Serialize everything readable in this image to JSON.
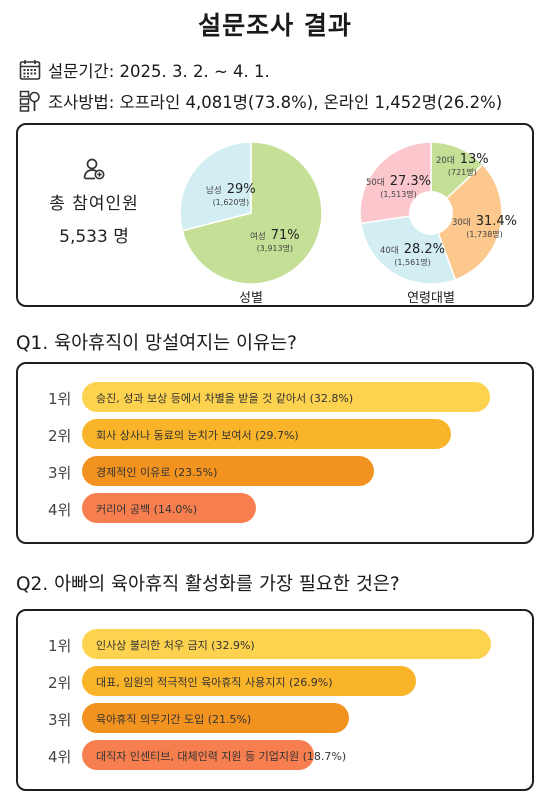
{
  "title": "설문조사 결과",
  "info": {
    "period": "설문기간: 2025. 3. 2. ~ 4. 1.",
    "method": "조사방법: 오프라인 4,081명(73.8%), 온라인 1,452명(26.2%)"
  },
  "summary": {
    "total_label": "총 참여인원",
    "total_value": "5,533 명"
  },
  "colors": {
    "rank1": "#fcd24f",
    "rank2": "#f9b42a",
    "rank3": "#f29320",
    "rank4": "#f77f4f",
    "male": "#d2eef3",
    "female": "#c5df96",
    "age20": "#c5df96",
    "age30": "#fcc88d",
    "age40": "#d2eef3",
    "age50": "#fbc7cc"
  },
  "chart_data": [
    {
      "type": "pie",
      "title": "성별",
      "categories": [
        "남성",
        "여성"
      ],
      "values": [
        29,
        71
      ],
      "counts": [
        "(1,620명)",
        "(3,913명)"
      ],
      "value_labels": [
        "29%",
        "71%"
      ]
    },
    {
      "type": "pie",
      "title": "연령대별",
      "categories": [
        "20대",
        "30대",
        "40대",
        "50대"
      ],
      "values": [
        13,
        31.4,
        28.2,
        27.3
      ],
      "counts": [
        "(721명)",
        "(1,738명)",
        "(1,561명)",
        "(1,513명)"
      ],
      "value_labels": [
        "13%",
        "31.4%",
        "28.2%",
        "27.3%"
      ]
    },
    {
      "type": "bar",
      "title": "Q1. 육아휴직이 망설여지는 이유는?",
      "categories": [
        "1위",
        "2위",
        "3위",
        "4위"
      ],
      "labels": [
        "승진, 성과 보상 등에서 차별을 받을 것 같아서 (32.8%)",
        "회사 상사나 동료의 눈치가 보여서 (29.7%)",
        "경제적인 이유로 (23.5%)",
        "커리어 공백 (14.0%)"
      ],
      "values": [
        32.8,
        29.7,
        23.5,
        14.0
      ]
    },
    {
      "type": "bar",
      "title": "Q2. 아빠의 육아휴직 활성화를 가장 필요한 것은?",
      "categories": [
        "1위",
        "2위",
        "3위",
        "4위"
      ],
      "labels": [
        "인사상 불리한 처우 금지 (32.9%)",
        "대표, 임원의 적극적인 육아휴직 사용지지 (26.9%)",
        "육아휴직 의무기간 도입 (21.5%)",
        "대직자 인센티브, 대체인력 지원 등 기업지원 (18.7%)"
      ],
      "values": [
        32.9,
        26.9,
        21.5,
        18.7
      ]
    }
  ]
}
